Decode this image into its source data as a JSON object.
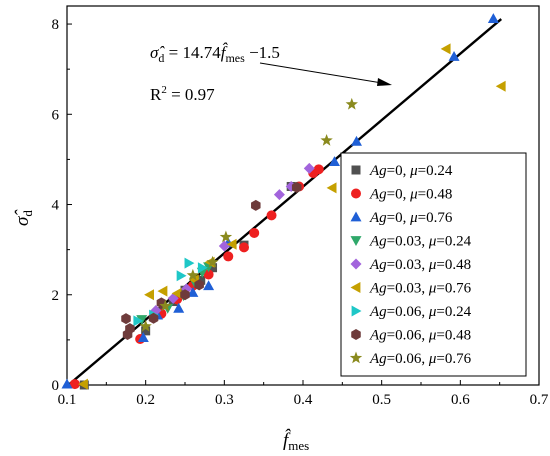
{
  "chart_data": {
    "type": "scatter",
    "xlabel": {
      "base": "f̂",
      "sub": "mes"
    },
    "ylabel": {
      "base": "σ̂",
      "sub": "d"
    },
    "xlim": [
      0.1,
      0.7
    ],
    "ylim": [
      0,
      8.4
    ],
    "xticks": [
      "0.1",
      "0.2",
      "0.3",
      "0.4",
      "0.5",
      "0.6",
      "0.7"
    ],
    "yticks": [
      "0",
      "2",
      "4",
      "6",
      "8"
    ],
    "fit_line": {
      "slope": 14.74,
      "intercept": -1.5,
      "x_range": [
        0.1018,
        0.652
      ]
    },
    "equation": {
      "lhs": "σ̂",
      "lhs_sub": "d",
      "eq": " = 14.74",
      "f": "f̂",
      "f_sub": "mes",
      "rest": " −1.5"
    },
    "r2": {
      "label": "R",
      "sup": "2",
      "value": " = 0.97"
    },
    "series": [
      {
        "name": "Ag=0, μ=0.24",
        "legend": {
          "a": "Ag",
          "b": "=0, ",
          "c": "μ",
          "d": "=0.24"
        },
        "marker": "square",
        "color": "#505050",
        "points": [
          [
            0.122,
            0.0
          ],
          [
            0.2,
            1.2
          ],
          [
            0.218,
            1.62
          ],
          [
            0.235,
            1.85
          ],
          [
            0.25,
            2.1
          ],
          [
            0.27,
            2.32
          ],
          [
            0.285,
            2.6
          ],
          [
            0.325,
            3.1
          ],
          [
            0.385,
            4.4
          ]
        ]
      },
      {
        "name": "Ag=0, μ=0.48",
        "legend": {
          "a": "Ag",
          "b": "=0, ",
          "c": "μ",
          "d": "=0.48"
        },
        "marker": "circle",
        "color": "#ee2020",
        "points": [
          [
            0.11,
            0.02
          ],
          [
            0.193,
            1.02
          ],
          [
            0.22,
            1.58
          ],
          [
            0.24,
            1.9
          ],
          [
            0.26,
            2.2
          ],
          [
            0.28,
            2.45
          ],
          [
            0.305,
            2.85
          ],
          [
            0.325,
            3.05
          ],
          [
            0.338,
            3.37
          ],
          [
            0.36,
            3.76
          ],
          [
            0.395,
            4.4
          ],
          [
            0.413,
            4.7
          ],
          [
            0.42,
            4.78
          ]
        ]
      },
      {
        "name": "Ag=0, μ=0.76",
        "legend": {
          "a": "Ag",
          "b": "=0, ",
          "c": "μ",
          "d": "=0.76"
        },
        "marker": "triangle-up",
        "color": "#1f5fd6",
        "points": [
          [
            0.1,
            0.02
          ],
          [
            0.197,
            1.05
          ],
          [
            0.215,
            1.55
          ],
          [
            0.242,
            1.7
          ],
          [
            0.26,
            2.05
          ],
          [
            0.28,
            2.2
          ],
          [
            0.305,
            3.15
          ],
          [
            0.44,
            4.95
          ],
          [
            0.468,
            5.4
          ],
          [
            0.592,
            7.28
          ],
          [
            0.642,
            8.12
          ]
        ]
      },
      {
        "name": "Ag=0.03, μ=0.24",
        "legend": {
          "a": "Ag",
          "b": "=0.03, ",
          "c": "μ",
          "d": "=0.24"
        },
        "marker": "triangle-down",
        "color": "#2fa86a",
        "points": [
          [
            0.195,
            1.45
          ],
          [
            0.228,
            1.7
          ],
          [
            0.248,
            1.98
          ],
          [
            0.262,
            2.28
          ],
          [
            0.272,
            2.5
          ],
          [
            0.28,
            2.62
          ]
        ]
      },
      {
        "name": "Ag=0.03, μ=0.48",
        "legend": {
          "a": "Ag",
          "b": "=0.03, ",
          "c": "μ",
          "d": "=0.48"
        },
        "marker": "diamond",
        "color": "#a264dc",
        "points": [
          [
            0.213,
            1.65
          ],
          [
            0.235,
            1.92
          ],
          [
            0.252,
            2.13
          ],
          [
            0.3,
            3.08
          ],
          [
            0.37,
            4.22
          ],
          [
            0.385,
            4.4
          ],
          [
            0.408,
            4.8
          ]
        ]
      },
      {
        "name": "Ag=0.03, μ=0.76",
        "legend": {
          "a": "Ag",
          "b": "=0.03, ",
          "c": "μ",
          "d": "=0.76"
        },
        "marker": "triangle-left",
        "color": "#c5a000",
        "points": [
          [
            0.121,
            0.02
          ],
          [
            0.205,
            2.0
          ],
          [
            0.222,
            2.08
          ],
          [
            0.24,
            2.03
          ],
          [
            0.262,
            2.33
          ],
          [
            0.282,
            2.72
          ],
          [
            0.31,
            3.12
          ],
          [
            0.437,
            4.37
          ],
          [
            0.582,
            7.45
          ],
          [
            0.652,
            6.62
          ]
        ]
      },
      {
        "name": "Ag=0.06, μ=0.24",
        "legend": {
          "a": "Ag",
          "b": "=0.06, ",
          "c": "μ",
          "d": "=0.24"
        },
        "marker": "triangle-right",
        "color": "#1ec7c7",
        "points": [
          [
            0.19,
            1.42
          ],
          [
            0.21,
            1.55
          ],
          [
            0.245,
            2.42
          ],
          [
            0.255,
            2.7
          ],
          [
            0.272,
            2.6
          ]
        ]
      },
      {
        "name": "Ag=0.06, μ=0.48",
        "legend": {
          "a": "Ag",
          "b": "=0.06, ",
          "c": "μ",
          "d": "=0.48"
        },
        "marker": "hexagon",
        "color": "#6e3b3b",
        "points": [
          [
            0.175,
            1.47
          ],
          [
            0.177,
            1.12
          ],
          [
            0.18,
            1.25
          ],
          [
            0.21,
            1.48
          ],
          [
            0.22,
            1.82
          ],
          [
            0.25,
            2.0
          ],
          [
            0.268,
            2.22
          ],
          [
            0.34,
            3.98
          ],
          [
            0.392,
            4.38
          ]
        ]
      },
      {
        "name": "Ag=0.06, μ=0.76",
        "legend": {
          "a": "Ag",
          "b": "=0.06, ",
          "c": "μ",
          "d": "=0.76"
        },
        "marker": "star",
        "color": "#8a8a1e",
        "points": [
          [
            0.2,
            1.3
          ],
          [
            0.225,
            1.75
          ],
          [
            0.26,
            2.43
          ],
          [
            0.285,
            2.72
          ],
          [
            0.302,
            3.28
          ],
          [
            0.43,
            5.42
          ],
          [
            0.462,
            6.22
          ]
        ]
      }
    ]
  }
}
